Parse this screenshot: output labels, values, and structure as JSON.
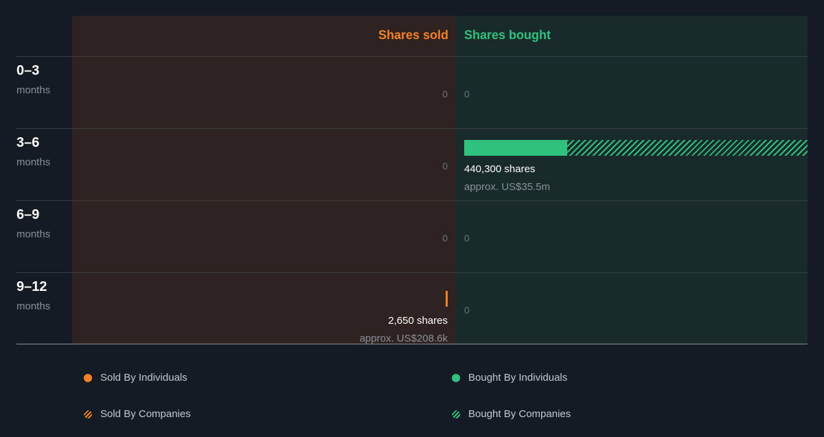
{
  "colors": {
    "sold": "#f5821f",
    "bought": "#2ec27e",
    "panel_sold": "#2e2321",
    "panel_bought": "#182b2a",
    "background": "#151b24"
  },
  "chart_data": {
    "type": "bar",
    "orientation": "horizontal-diverging",
    "columns": {
      "sold": "Shares sold",
      "bought": "Shares bought"
    },
    "scale_max_shares": 440300,
    "rows": [
      {
        "range": "0–3",
        "unit": "months",
        "sold": {
          "individuals": 0,
          "companies": 0,
          "zero_label": "0"
        },
        "bought": {
          "individuals": 0,
          "companies": 0,
          "zero_label": "0"
        }
      },
      {
        "range": "3–6",
        "unit": "months",
        "sold": {
          "individuals": 0,
          "companies": 0,
          "zero_label": "0"
        },
        "bought": {
          "individuals": 132000,
          "companies": 308300,
          "shares_label": "440,300 shares",
          "value_label": "approx. US$35.5m"
        }
      },
      {
        "range": "6–9",
        "unit": "months",
        "sold": {
          "individuals": 0,
          "companies": 0,
          "zero_label": "0"
        },
        "bought": {
          "individuals": 0,
          "companies": 0,
          "zero_label": "0"
        }
      },
      {
        "range": "9–12",
        "unit": "months",
        "sold": {
          "individuals": 2650,
          "companies": 0,
          "shares_label": "2,650 shares",
          "value_label": "approx. US$208.6k"
        },
        "bought": {
          "individuals": 0,
          "companies": 0,
          "zero_label": "0"
        }
      }
    ],
    "legend": [
      {
        "label": "Sold By Individuals",
        "side": "sold",
        "style": "solid"
      },
      {
        "label": "Bought By Individuals",
        "side": "bought",
        "style": "solid"
      },
      {
        "label": "Sold By Companies",
        "side": "sold",
        "style": "hatched"
      },
      {
        "label": "Bought By Companies",
        "side": "bought",
        "style": "hatched"
      }
    ]
  }
}
